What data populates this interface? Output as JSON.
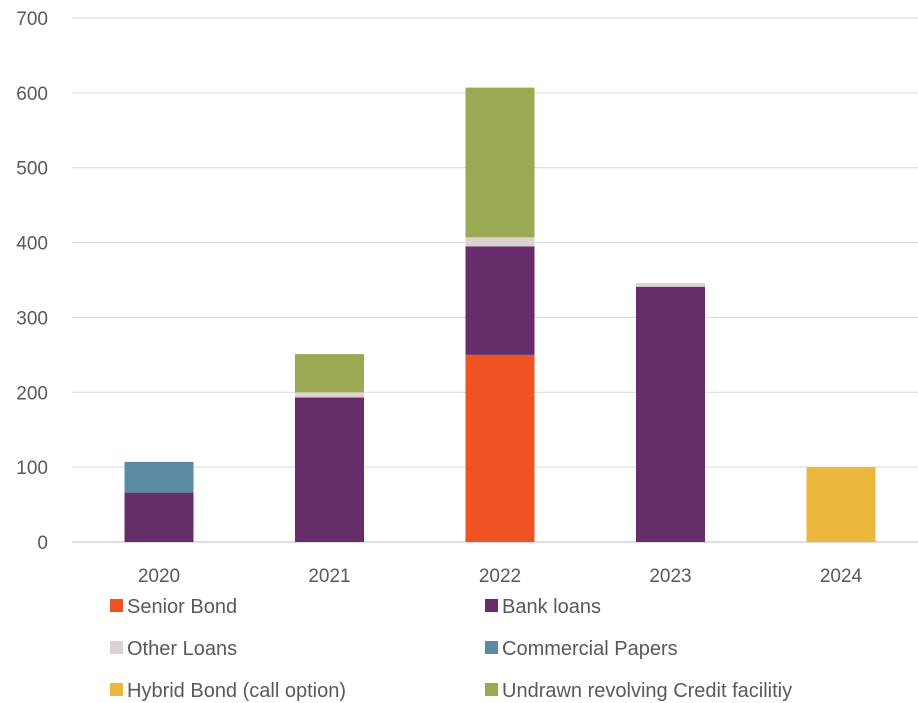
{
  "chart_data": {
    "type": "bar",
    "stacked": true,
    "categories": [
      "2020",
      "2021",
      "2022",
      "2023",
      "2024"
    ],
    "ylim": [
      0,
      700
    ],
    "yticks": [
      0,
      100,
      200,
      300,
      400,
      500,
      600,
      700
    ],
    "grid": true,
    "legend_position": "bottom",
    "title": "",
    "xlabel": "",
    "ylabel": "",
    "series": [
      {
        "name": "Senior Bond",
        "color": "#F05323",
        "values": [
          0,
          0,
          250,
          0,
          0
        ]
      },
      {
        "name": "Bank loans",
        "color": "#672D6A",
        "values": [
          66,
          193,
          145,
          341,
          0
        ]
      },
      {
        "name": "Other Loans",
        "color": "#DCD3D1",
        "values": [
          0,
          7,
          12,
          5,
          0
        ]
      },
      {
        "name": "Commercial Papers",
        "color": "#5A8BA3",
        "values": [
          41,
          0,
          0,
          0,
          0
        ]
      },
      {
        "name": "Hybrid Bond (call option)",
        "color": "#EBB73D",
        "values": [
          0,
          0,
          0,
          0,
          100
        ]
      },
      {
        "name": "Undrawn revolving Credit facilitiy",
        "color": "#9BAA52",
        "values": [
          0,
          51,
          200,
          0,
          0
        ]
      }
    ]
  }
}
